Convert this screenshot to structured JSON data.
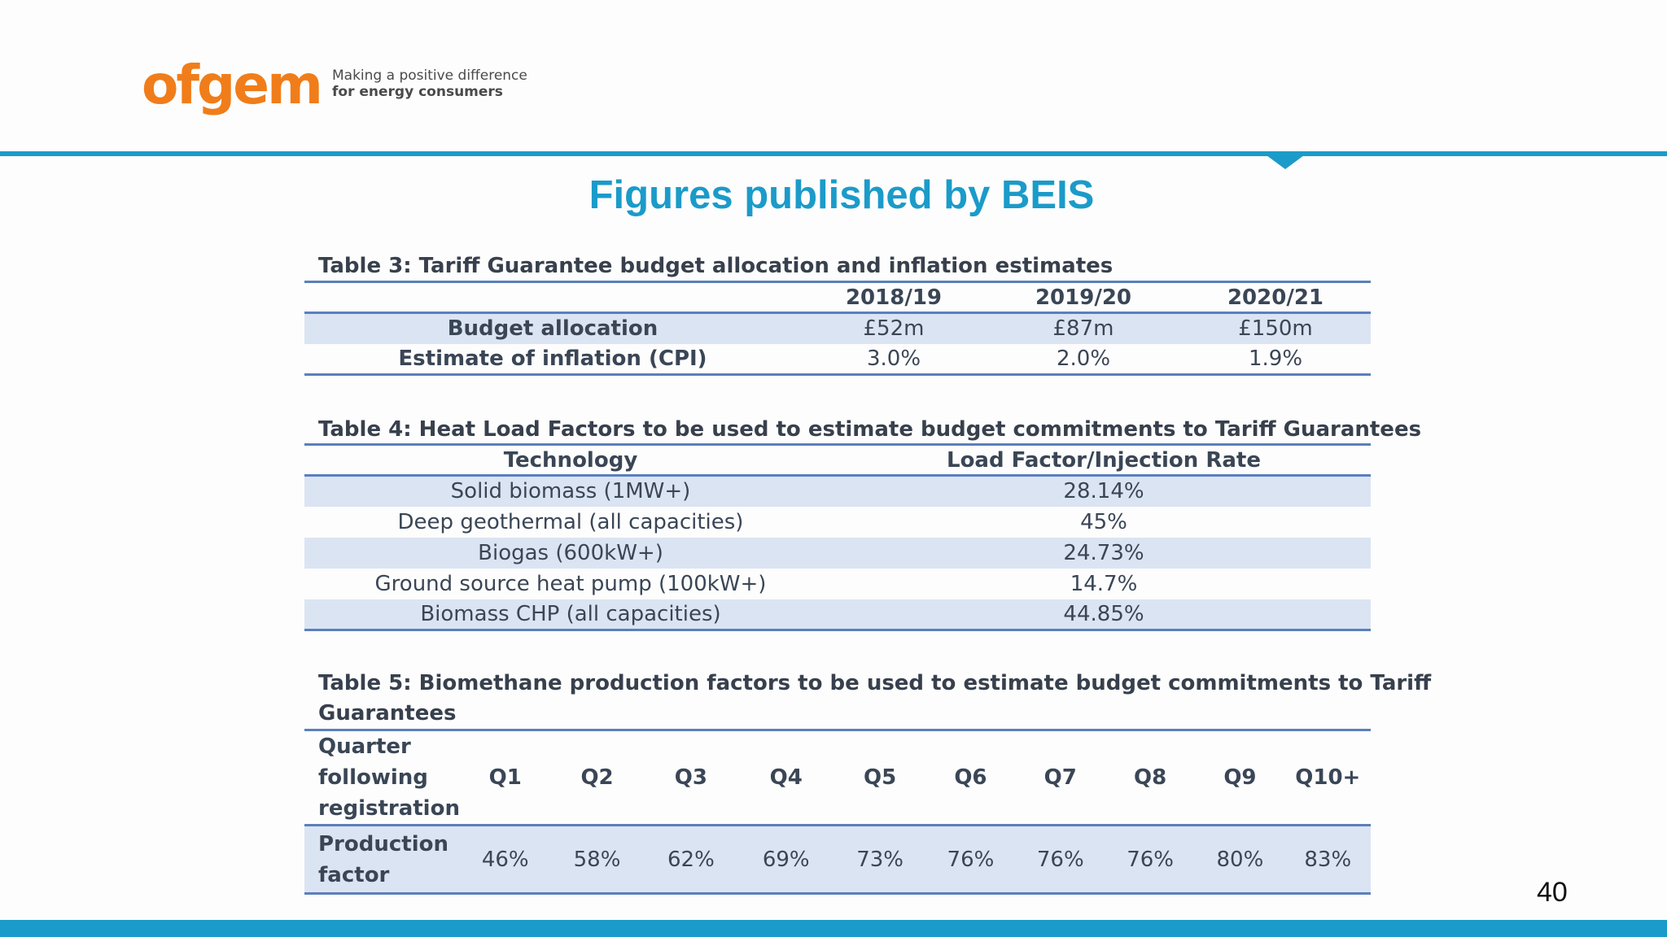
{
  "header": {
    "logo_word": "ofgem",
    "tagline_1": "Making a positive difference",
    "tagline_2": "for energy consumers"
  },
  "title": "Figures published by BEIS",
  "page_number": "40",
  "table3": {
    "caption": "Table 3: Tariff Guarantee budget allocation and inflation estimates",
    "columns": [
      "2018/19",
      "2019/20",
      "2020/21"
    ],
    "rows": [
      {
        "label": "Budget allocation",
        "values": [
          "£52m",
          "£87m",
          "£150m"
        ]
      },
      {
        "label": "Estimate of inflation (CPI)",
        "values": [
          "3.0%",
          "2.0%",
          "1.9%"
        ]
      }
    ]
  },
  "table4": {
    "caption": "Table 4: Heat Load Factors to be used to estimate budget commitments to Tariff Guarantees",
    "headers": [
      "Technology",
      "Load Factor/Injection Rate"
    ],
    "rows": [
      [
        "Solid biomass (1MW+)",
        "28.14%"
      ],
      [
        "Deep geothermal (all capacities)",
        "45%"
      ],
      [
        "Biogas (600kW+)",
        "24.73%"
      ],
      [
        "Ground source heat pump (100kW+)",
        "14.7%"
      ],
      [
        "Biomass CHP (all capacities)",
        "44.85%"
      ]
    ]
  },
  "table5": {
    "caption_1": "Table 5: Biomethane production factors to be used to estimate budget commitments to Tariff",
    "caption_2": "Guarantees",
    "row_label_1": [
      "Quarter",
      "following",
      "registration"
    ],
    "quarters": [
      "Q1",
      "Q2",
      "Q3",
      "Q4",
      "Q5",
      "Q6",
      "Q7",
      "Q8",
      "Q9",
      "Q10+"
    ],
    "row_label_2": [
      "Production",
      "factor"
    ],
    "factors": [
      "46%",
      "58%",
      "62%",
      "69%",
      "73%",
      "76%",
      "76%",
      "76%",
      "80%",
      "83%"
    ]
  }
}
